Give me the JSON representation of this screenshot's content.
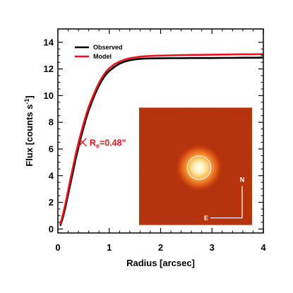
{
  "chart_data": {
    "type": "line",
    "xlabel": "Radius [arcsec]",
    "ylabel": "Flux [counts s",
    "ylabel_sup": "-1",
    "ylabel_close": "]",
    "xlim": [
      0,
      4
    ],
    "ylim": [
      -0.3,
      15
    ],
    "x_ticks": [
      0,
      1,
      2,
      3,
      4
    ],
    "x_tick_labels": [
      "0",
      "1",
      "2",
      "3",
      "4"
    ],
    "y_ticks": [
      0,
      2,
      4,
      6,
      8,
      10,
      12,
      14
    ],
    "y_tick_labels": [
      "0",
      "2",
      "4",
      "6",
      "8",
      "10",
      "12",
      "14"
    ],
    "grid": false,
    "legend_position": "top-left",
    "series": [
      {
        "name": "Observed",
        "color": "#000000",
        "x": [
          0.05,
          0.1,
          0.15,
          0.2,
          0.25,
          0.3,
          0.35,
          0.4,
          0.45,
          0.5,
          0.55,
          0.6,
          0.65,
          0.7,
          0.75,
          0.8,
          0.85,
          0.9,
          0.95,
          1.0,
          1.1,
          1.2,
          1.3,
          1.4,
          1.5,
          1.6,
          1.7,
          1.8,
          1.9,
          2.0,
          2.2,
          2.4,
          2.6,
          2.8,
          3.0,
          3.2,
          3.4,
          3.6,
          3.8,
          4.0
        ],
        "values": [
          0.3,
          0.9,
          1.7,
          2.6,
          3.5,
          4.4,
          5.3,
          6.1,
          6.9,
          7.6,
          8.3,
          8.9,
          9.4,
          9.9,
          10.35,
          10.75,
          11.1,
          11.4,
          11.65,
          11.85,
          12.15,
          12.4,
          12.55,
          12.65,
          12.72,
          12.76,
          12.78,
          12.79,
          12.8,
          12.8,
          12.81,
          12.81,
          12.82,
          12.82,
          12.82,
          12.83,
          12.83,
          12.84,
          12.84,
          12.85
        ]
      },
      {
        "name": "Model",
        "color": "#e8141b",
        "x": [
          0.05,
          0.1,
          0.15,
          0.2,
          0.25,
          0.3,
          0.35,
          0.4,
          0.45,
          0.5,
          0.55,
          0.6,
          0.65,
          0.7,
          0.75,
          0.8,
          0.85,
          0.9,
          0.95,
          1.0,
          1.1,
          1.2,
          1.3,
          1.4,
          1.5,
          1.6,
          1.7,
          1.8,
          1.9,
          2.0,
          2.2,
          2.4,
          2.6,
          2.8,
          3.0,
          3.2,
          3.4,
          3.6,
          3.8,
          4.0
        ],
        "values": [
          0.4,
          1.1,
          1.95,
          2.9,
          3.85,
          4.75,
          5.65,
          6.45,
          7.2,
          7.9,
          8.55,
          9.15,
          9.65,
          10.1,
          10.55,
          10.95,
          11.3,
          11.6,
          11.85,
          12.05,
          12.35,
          12.55,
          12.7,
          12.8,
          12.87,
          12.92,
          12.95,
          12.97,
          12.99,
          13.0,
          13.02,
          13.04,
          13.05,
          13.06,
          13.07,
          13.08,
          13.09,
          13.1,
          13.1,
          13.11
        ]
      }
    ],
    "annotations": [
      {
        "marker": "x",
        "x": 0.48,
        "y": 6.5,
        "text_main": "R",
        "text_sub": "e",
        "text_rest": "=0.48\"",
        "color": "#e8141b"
      }
    ],
    "inset": {
      "type": "image",
      "description_colors": {
        "background": "#b22a08",
        "core": "#fffbe6",
        "aperture_circle": "#ffffff"
      },
      "x_range": [
        1.58,
        3.78
      ],
      "y_range": [
        0.3,
        9.1
      ],
      "source_center": [
        2.75,
        4.6
      ],
      "aperture_radius_x": 0.23,
      "compass": {
        "north_label": "N",
        "east_label": "E"
      }
    }
  }
}
